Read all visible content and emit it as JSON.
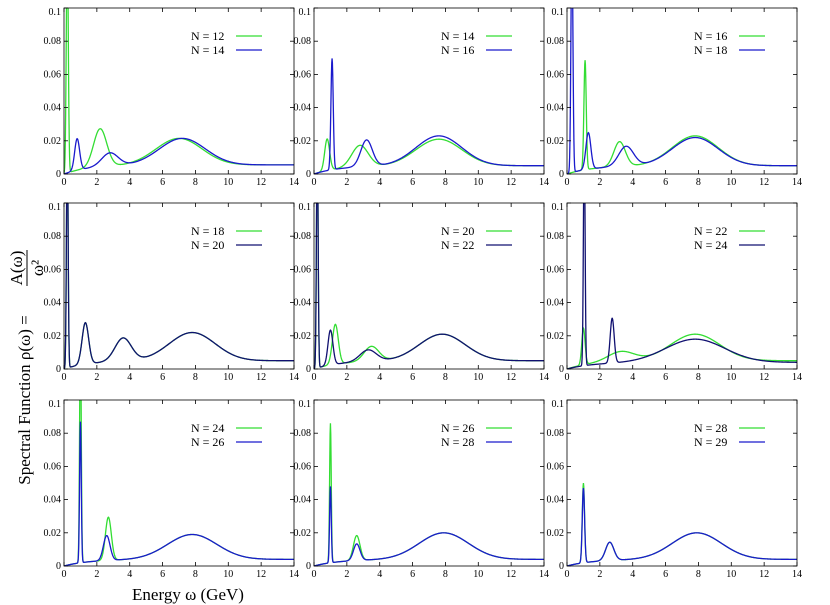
{
  "axis_labels": {
    "xlabel": "Energy  ω (GeV)",
    "ylabel_prefix": "Spectral Function  ρ(ω) =",
    "ylabel_num": "A(ω)",
    "ylabel_den": "ω²"
  },
  "colors": {
    "green": "#33dd33",
    "blue": "#1a1acc",
    "darkblue": "#101070"
  },
  "chart_data": [
    {
      "type": "line",
      "xlim": [
        0,
        14
      ],
      "ylim": [
        0,
        0.1
      ],
      "xticks": [
        "0",
        "2",
        "4",
        "6",
        "8",
        "10",
        "12",
        "14"
      ],
      "yticks": [
        "0",
        "0.02",
        "0.04",
        "0.06",
        "0.08",
        "0.1"
      ],
      "series": [
        {
          "name": "N = 12",
          "color": "#33dd33",
          "peaks": [
            [
              0.2,
              0.14,
              0.06
            ],
            [
              2.2,
              0.023,
              0.4
            ],
            [
              7.0,
              0.016,
              1.4
            ]
          ],
          "base": 0.0055
        },
        {
          "name": "N = 14",
          "color": "#1a1acc",
          "peaks": [
            [
              0.8,
              0.019,
              0.15
            ],
            [
              2.8,
              0.008,
              0.5
            ],
            [
              7.2,
              0.016,
              1.4
            ]
          ],
          "base": 0.0055
        }
      ]
    },
    {
      "type": "line",
      "xlim": [
        0,
        14
      ],
      "ylim": [
        0,
        0.1
      ],
      "xticks": [
        "0",
        "2",
        "4",
        "6",
        "8",
        "10",
        "12",
        "14"
      ],
      "yticks": [
        "0",
        "0.02",
        "0.04",
        "0.06",
        "0.08",
        "0.1"
      ],
      "series": [
        {
          "name": "N = 14",
          "color": "#33dd33",
          "peaks": [
            [
              0.8,
              0.019,
              0.15
            ],
            [
              2.8,
              0.013,
              0.5
            ],
            [
              7.6,
              0.016,
              1.4
            ]
          ],
          "base": 0.005
        },
        {
          "name": "N = 16",
          "color": "#1a1acc",
          "peaks": [
            [
              1.1,
              0.067,
              0.07
            ],
            [
              3.2,
              0.016,
              0.35
            ],
            [
              7.6,
              0.018,
              1.4
            ]
          ],
          "base": 0.005
        }
      ]
    },
    {
      "type": "line",
      "xlim": [
        0,
        14
      ],
      "ylim": [
        0,
        0.1
      ],
      "xticks": [
        "0",
        "2",
        "4",
        "6",
        "8",
        "10",
        "12",
        "14"
      ],
      "yticks": [
        "0",
        "0.02",
        "0.04",
        "0.06",
        "0.08",
        "0.1"
      ],
      "series": [
        {
          "name": "N = 16",
          "color": "#33dd33",
          "peaks": [
            [
              1.1,
              0.066,
              0.07
            ],
            [
              3.2,
              0.015,
              0.35
            ],
            [
              7.8,
              0.018,
              1.4
            ]
          ],
          "base": 0.005
        },
        {
          "name": "N = 18",
          "color": "#1a1acc",
          "peaks": [
            [
              0.3,
              0.14,
              0.06
            ],
            [
              1.3,
              0.022,
              0.15
            ],
            [
              3.6,
              0.012,
              0.45
            ],
            [
              7.8,
              0.017,
              1.4
            ]
          ],
          "base": 0.005
        }
      ]
    },
    {
      "type": "line",
      "xlim": [
        0,
        14
      ],
      "ylim": [
        0,
        0.1
      ],
      "xticks": [
        "0",
        "2",
        "4",
        "6",
        "8",
        "10",
        "12",
        "14"
      ],
      "yticks": [
        "0",
        "0.02",
        "0.04",
        "0.06",
        "0.08",
        "0.1"
      ],
      "series": [
        {
          "name": "N = 18",
          "color": "#33dd33",
          "peaks": [
            [
              0.2,
              0.14,
              0.05
            ],
            [
              1.3,
              0.025,
              0.2
            ],
            [
              3.6,
              0.014,
              0.5
            ],
            [
              7.8,
              0.017,
              1.4
            ]
          ],
          "base": 0.005
        },
        {
          "name": "N = 20",
          "color": "#101070",
          "peaks": [
            [
              0.2,
              0.14,
              0.05
            ],
            [
              1.3,
              0.025,
              0.2
            ],
            [
              3.6,
              0.014,
              0.5
            ],
            [
              7.8,
              0.017,
              1.4
            ]
          ],
          "base": 0.005
        }
      ]
    },
    {
      "type": "line",
      "xlim": [
        0,
        14
      ],
      "ylim": [
        0,
        0.1
      ],
      "xticks": [
        "0",
        "2",
        "4",
        "6",
        "8",
        "10",
        "12",
        "14"
      ],
      "yticks": [
        "0",
        "0.02",
        "0.04",
        "0.06",
        "0.08",
        "0.1"
      ],
      "series": [
        {
          "name": "N = 20",
          "color": "#33dd33",
          "peaks": [
            [
              0.2,
              0.14,
              0.05
            ],
            [
              1.3,
              0.024,
              0.18
            ],
            [
              3.5,
              0.009,
              0.45
            ],
            [
              7.8,
              0.016,
              1.4
            ]
          ],
          "base": 0.005
        },
        {
          "name": "N = 22",
          "color": "#101070",
          "peaks": [
            [
              0.2,
              0.14,
              0.05
            ],
            [
              1.0,
              0.021,
              0.15
            ],
            [
              3.3,
              0.007,
              0.5
            ],
            [
              7.8,
              0.016,
              1.4
            ]
          ],
          "base": 0.005
        }
      ]
    },
    {
      "type": "line",
      "xlim": [
        0,
        14
      ],
      "ylim": [
        0,
        0.1
      ],
      "xticks": [
        "0",
        "2",
        "4",
        "6",
        "8",
        "10",
        "12",
        "14"
      ],
      "yticks": [
        "0",
        "0.02",
        "0.04",
        "0.06",
        "0.08",
        "0.1"
      ],
      "series": [
        {
          "name": "N = 22",
          "color": "#33dd33",
          "peaks": [
            [
              1.0,
              0.022,
              0.1
            ],
            [
              3.3,
              0.006,
              0.8
            ],
            [
              7.8,
              0.016,
              1.5
            ]
          ],
          "base": 0.005
        },
        {
          "name": "N = 24",
          "color": "#101070",
          "peaks": [
            [
              1.05,
              0.14,
              0.05
            ],
            [
              2.75,
              0.027,
              0.12
            ],
            [
              7.8,
              0.014,
              1.8
            ]
          ],
          "base": 0.004
        }
      ]
    },
    {
      "type": "line",
      "xlim": [
        0,
        14
      ],
      "ylim": [
        0,
        0.1
      ],
      "xticks": [
        "0",
        "2",
        "4",
        "6",
        "8",
        "10",
        "12",
        "14"
      ],
      "yticks": [
        "0",
        "0.02",
        "0.04",
        "0.06",
        "0.08",
        "0.1"
      ],
      "series": [
        {
          "name": "N = 24",
          "color": "#33dd33",
          "peaks": [
            [
              1.0,
              0.14,
              0.05
            ],
            [
              2.7,
              0.026,
              0.18
            ],
            [
              7.8,
              0.015,
              1.5
            ]
          ],
          "base": 0.004
        },
        {
          "name": "N = 26",
          "color": "#1a1acc",
          "peaks": [
            [
              1.0,
              0.085,
              0.05
            ],
            [
              2.6,
              0.015,
              0.2
            ],
            [
              7.8,
              0.015,
              1.5
            ]
          ],
          "base": 0.004
        }
      ]
    },
    {
      "type": "line",
      "xlim": [
        0,
        14
      ],
      "ylim": [
        0,
        0.1
      ],
      "xticks": [
        "0",
        "2",
        "4",
        "6",
        "8",
        "10",
        "12",
        "14"
      ],
      "yticks": [
        "0",
        "0.02",
        "0.04",
        "0.06",
        "0.08",
        "0.1"
      ],
      "series": [
        {
          "name": "N = 26",
          "color": "#33dd33",
          "peaks": [
            [
              1.0,
              0.084,
              0.05
            ],
            [
              2.6,
              0.015,
              0.2
            ],
            [
              7.9,
              0.016,
              1.5
            ]
          ],
          "base": 0.004
        },
        {
          "name": "N = 28",
          "color": "#1a1acc",
          "peaks": [
            [
              1.0,
              0.046,
              0.05
            ],
            [
              2.6,
              0.01,
              0.2
            ],
            [
              7.9,
              0.016,
              1.5
            ]
          ],
          "base": 0.004
        }
      ]
    },
    {
      "type": "line",
      "xlim": [
        0,
        14
      ],
      "ylim": [
        0,
        0.1
      ],
      "xticks": [
        "0",
        "2",
        "4",
        "6",
        "8",
        "10",
        "12",
        "14"
      ],
      "yticks": [
        "0",
        "0.02",
        "0.04",
        "0.06",
        "0.08",
        "0.1"
      ],
      "series": [
        {
          "name": "N = 28",
          "color": "#33dd33",
          "peaks": [
            [
              1.0,
              0.048,
              0.07
            ],
            [
              2.6,
              0.011,
              0.25
            ],
            [
              7.9,
              0.016,
              1.5
            ]
          ],
          "base": 0.004
        },
        {
          "name": "N = 29",
          "color": "#1a1acc",
          "peaks": [
            [
              1.0,
              0.045,
              0.07
            ],
            [
              2.6,
              0.011,
              0.25
            ],
            [
              7.9,
              0.016,
              1.5
            ]
          ],
          "base": 0.004
        }
      ]
    }
  ]
}
